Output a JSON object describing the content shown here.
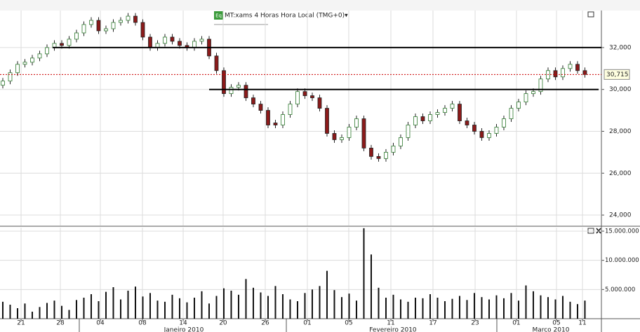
{
  "chart_data": {
    "type": "candlestick",
    "header": {
      "icon": "Eq",
      "title": "MT:xams 4 Horas Hora Local (TMG+0)▾"
    },
    "open": [
      30200,
      30400,
      30800,
      31200,
      31300,
      31500,
      31700,
      32000,
      32200,
      32100,
      32400,
      32700,
      33100,
      33300,
      32800,
      32900,
      33200,
      33300,
      33500,
      33200,
      32500,
      32000,
      32200,
      32500,
      32300,
      32100,
      32000,
      32300,
      32400,
      31600,
      30900,
      29800,
      30100,
      30200,
      29600,
      29300,
      29000,
      28400,
      28300,
      28800,
      29300,
      29900,
      29700,
      29600,
      29100,
      27900,
      27600,
      27700,
      28200,
      28600,
      27200,
      26800,
      26700,
      27000,
      27300,
      27700,
      28300,
      28700,
      28500,
      28800,
      28900,
      29100,
      29300,
      28500,
      28300,
      28000,
      27700,
      27900,
      28200,
      28600,
      29100,
      29400,
      29800,
      29900,
      30500,
      30900,
      30600,
      31000,
      31200,
      30900
    ],
    "high": [
      30550,
      30950,
      31350,
      31450,
      31650,
      31850,
      32150,
      32350,
      32350,
      32550,
      32850,
      33250,
      33450,
      33450,
      33050,
      33350,
      33450,
      33650,
      33650,
      33350,
      32650,
      32350,
      32650,
      32650,
      32450,
      32250,
      32450,
      32550,
      32550,
      31750,
      31050,
      30250,
      30350,
      30350,
      29750,
      29450,
      29150,
      28550,
      28950,
      29450,
      30050,
      30050,
      29850,
      29750,
      29250,
      28050,
      27850,
      28350,
      28750,
      28750,
      27350,
      26950,
      27150,
      27450,
      27850,
      28450,
      28850,
      28850,
      28950,
      29050,
      29250,
      29450,
      29450,
      28650,
      28450,
      28150,
      28050,
      28350,
      28750,
      29250,
      29550,
      29950,
      30050,
      30650,
      31050,
      31050,
      31150,
      31350,
      31350,
      31050
    ],
    "low": [
      30050,
      30250,
      30650,
      31050,
      31150,
      31350,
      31550,
      31850,
      31950,
      31950,
      32250,
      32550,
      32950,
      32650,
      32650,
      32750,
      33050,
      33150,
      33050,
      32350,
      31850,
      31850,
      32050,
      32150,
      31950,
      31850,
      31850,
      32150,
      31450,
      30750,
      29650,
      29650,
      29950,
      29450,
      29150,
      28850,
      28150,
      28150,
      28150,
      28650,
      29150,
      29550,
      29450,
      28950,
      27750,
      27450,
      27450,
      27550,
      28050,
      27050,
      26650,
      26550,
      26550,
      26850,
      27150,
      27550,
      28150,
      28350,
      28350,
      28650,
      28750,
      28950,
      28350,
      28150,
      27850,
      27550,
      27550,
      27750,
      28050,
      28450,
      28950,
      29250,
      29650,
      29750,
      30350,
      30450,
      30450,
      30850,
      30750,
      30565
    ],
    "close": [
      30400,
      30800,
      31200,
      31300,
      31500,
      31700,
      32000,
      32200,
      32100,
      32400,
      32700,
      33100,
      33300,
      32800,
      32900,
      33200,
      33300,
      33500,
      33200,
      32500,
      32000,
      32200,
      32500,
      32300,
      32100,
      32000,
      32300,
      32400,
      31600,
      30900,
      29800,
      30100,
      30200,
      29600,
      29300,
      29000,
      28300,
      28300,
      28800,
      29300,
      29900,
      29700,
      29600,
      29100,
      27900,
      27600,
      27700,
      28200,
      28600,
      27200,
      26800,
      26700,
      27000,
      27300,
      27700,
      28300,
      28700,
      28500,
      28800,
      28900,
      29100,
      29300,
      28500,
      28300,
      28000,
      27700,
      27900,
      28200,
      28600,
      29100,
      29400,
      29800,
      29900,
      30500,
      30900,
      30600,
      31000,
      31200,
      30900,
      30715
    ],
    "volume": [
      2900000,
      2400000,
      1800000,
      2600000,
      1200000,
      2000000,
      2700000,
      3100000,
      2200000,
      1500000,
      3200000,
      3600000,
      4200000,
      3000000,
      4600000,
      5400000,
      3300000,
      4800000,
      5500000,
      3800000,
      4400000,
      3100000,
      2900000,
      4100000,
      3500000,
      2800000,
      3600000,
      4700000,
      2600000,
      3900000,
      5200000,
      4800000,
      4100000,
      6800000,
      5300000,
      4500000,
      3900000,
      5600000,
      4200000,
      3300000,
      3000000,
      4400000,
      5000000,
      5600000,
      8200000,
      4900000,
      3700000,
      4300000,
      3100000,
      15500000,
      11000000,
      5300000,
      3600000,
      4100000,
      3300000,
      2900000,
      3600000,
      3500000,
      4200000,
      3600000,
      3000000,
      3400000,
      3900000,
      3200000,
      4400000,
      3700000,
      3300000,
      4000000,
      3500000,
      4400000,
      3100000,
      5700000,
      4700000,
      4000000,
      3700000,
      3300000,
      3900000,
      2900000,
      2500000,
      3100000
    ],
    "up_color": "#2f7a2f",
    "down_color": "#8b1a1a",
    "volume_color": "#111111",
    "xlim": [
      -0.38,
      81.24
    ],
    "xticks": [
      {
        "value": 2.48,
        "label": "21"
      },
      {
        "value": 7.81,
        "label": "28"
      },
      {
        "value": 13.24,
        "label": "04"
      },
      {
        "value": 18.95,
        "label": "08"
      },
      {
        "value": 24.48,
        "label": "14"
      },
      {
        "value": 29.9,
        "label": "20"
      },
      {
        "value": 35.62,
        "label": "26"
      },
      {
        "value": 41.33,
        "label": "01"
      },
      {
        "value": 46.95,
        "label": "05"
      },
      {
        "value": 52.67,
        "label": "11"
      },
      {
        "value": 58.38,
        "label": "17"
      },
      {
        "value": 64.1,
        "label": "23"
      },
      {
        "value": 69.71,
        "label": "01"
      },
      {
        "value": 75.14,
        "label": "05"
      },
      {
        "value": 78.67,
        "label": "11"
      }
    ],
    "months": [
      {
        "value": 24.57,
        "label": "Janeiro 2010"
      },
      {
        "value": 52.95,
        "label": "Fevereiro 2010"
      },
      {
        "value": 74.38,
        "label": "Março 2010"
      }
    ],
    "month_starts": [
      10.38,
      38.48,
      67.05
    ],
    "ylim": [
      23500,
      33770
    ],
    "yticks": [
      {
        "value": 24000,
        "label": "24,000"
      },
      {
        "value": 26000,
        "label": "26,000"
      },
      {
        "value": 28000,
        "label": "28,000"
      },
      {
        "value": 30000,
        "label": "30,000"
      },
      {
        "value": 32000,
        "label": "32,000"
      }
    ],
    "y2lim": [
      0,
      15600000
    ],
    "y2ticks": [
      {
        "value": 5000000,
        "label": "5.000.000"
      },
      {
        "value": 10000000,
        "label": "10.000.000"
      },
      {
        "value": 15000000,
        "label": "15.000.000"
      }
    ],
    "levels": [
      {
        "value": 32000,
        "x": [
          6.76,
          81.24
        ]
      },
      {
        "value": 30000,
        "x": [
          28.0,
          80.86
        ]
      }
    ],
    "last_price": {
      "value": 30715,
      "label": "30,715",
      "color": "#cc0000"
    },
    "grid": true
  }
}
